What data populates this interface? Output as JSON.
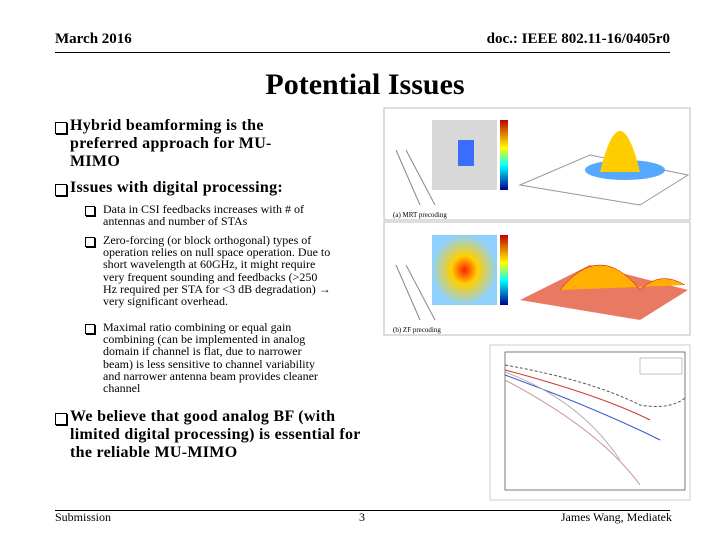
{
  "header": {
    "date": "March 2016",
    "doc": "doc.: IEEE 802.11-16/0405r0"
  },
  "title": "Potential Issues",
  "bullets": [
    {
      "level": 1,
      "lines": [
        "Hybrid beamforming is the",
        "preferred approach for MU-",
        "MIMO"
      ]
    },
    {
      "level": 1,
      "lines": [
        "Issues with digital processing:"
      ]
    },
    {
      "level": 2,
      "lines": [
        "Data in CSI feedbacks increases with # of",
        "antennas and number of STAs"
      ]
    },
    {
      "level": 2,
      "lines": [
        "Zero-forcing (or block orthogonal) types of",
        "operation relies on null space operation. Due to",
        "short wavelength at 60GHz, it might require",
        "very frequent sounding and feedbacks (>250",
        "Hz required per STA for <3 dB degradation) → ",
        "very significant overhead."
      ]
    },
    {
      "level": 2,
      "lines": [
        "Maximal ratio combining or equal gain",
        "combining (can be implemented in analog",
        "domain if channel is flat, due to narrower",
        "beam) is less sensitive to channel variability",
        "and narrower antenna beam provides cleaner",
        "channel"
      ]
    },
    {
      "level": 1,
      "lines": [
        "We believe that good analog BF (with",
        "limited digital processing) is essential for",
        "the reliable MU-MIMO"
      ]
    }
  ],
  "figures": {
    "mrt": "(a) MRT precoding",
    "zf": "(b) ZF precoding"
  },
  "footer": {
    "left": "Submission",
    "page": "3",
    "right": "James Wang, Mediatek"
  }
}
